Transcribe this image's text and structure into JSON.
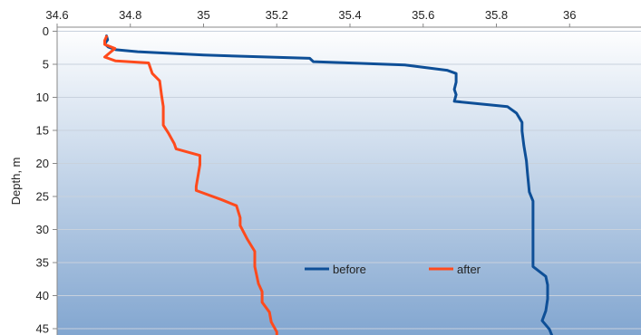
{
  "chart_data": {
    "type": "line",
    "title": "",
    "xlabel": "",
    "ylabel": "Depth, m",
    "xlim": [
      34.6,
      36.2
    ],
    "ylim": [
      0,
      46.5
    ],
    "y_reversed": true,
    "grid": true,
    "legend_placement": "lower-center",
    "x_ticks": [
      34.6,
      34.8,
      35,
      35.2,
      35.4,
      35.6,
      35.8,
      36
    ],
    "x_tick_labels": [
      "34.6",
      "34.8",
      "35",
      "35.2",
      "35.4",
      "35.6",
      "35.8",
      "36"
    ],
    "y_ticks": [
      0,
      5,
      10,
      15,
      20,
      25,
      30,
      35,
      40,
      45
    ],
    "y_tick_labels": [
      "0",
      "5",
      "10",
      "15",
      "20",
      "25",
      "30",
      "35",
      "40",
      "45"
    ],
    "series": [
      {
        "name": "before",
        "color": "#0e4f97",
        "points": [
          [
            34.735,
            0.7
          ],
          [
            34.738,
            1.3
          ],
          [
            34.73,
            1.9
          ],
          [
            34.74,
            2.4
          ],
          [
            34.76,
            2.8
          ],
          [
            34.82,
            3.1
          ],
          [
            35.0,
            3.6
          ],
          [
            35.29,
            4.1
          ],
          [
            35.3,
            4.6
          ],
          [
            35.55,
            5.1
          ],
          [
            35.665,
            5.9
          ],
          [
            35.69,
            6.4
          ],
          [
            35.69,
            7.7
          ],
          [
            35.685,
            8.8
          ],
          [
            35.69,
            9.6
          ],
          [
            35.685,
            10.6
          ],
          [
            35.83,
            11.4
          ],
          [
            35.855,
            12.4
          ],
          [
            35.87,
            13.8
          ],
          [
            35.87,
            15.1
          ],
          [
            35.875,
            17.3
          ],
          [
            35.882,
            19.6
          ],
          [
            35.885,
            21.5
          ],
          [
            35.89,
            24.3
          ],
          [
            35.9,
            25.7
          ],
          [
            35.9,
            27.5
          ],
          [
            35.9,
            30.0
          ],
          [
            35.9,
            32.5
          ],
          [
            35.9,
            35.6
          ],
          [
            35.935,
            37.1
          ],
          [
            35.94,
            38.4
          ],
          [
            35.94,
            40.5
          ],
          [
            35.935,
            42.3
          ],
          [
            35.925,
            43.8
          ],
          [
            35.945,
            45.1
          ],
          [
            35.955,
            46.5
          ]
        ]
      },
      {
        "name": "after",
        "color": "#ff4a1c",
        "points": [
          [
            34.735,
            0.8
          ],
          [
            34.73,
            1.4
          ],
          [
            34.73,
            2.0
          ],
          [
            34.758,
            2.6
          ],
          [
            34.73,
            3.9
          ],
          [
            34.76,
            4.5
          ],
          [
            34.85,
            4.8
          ],
          [
            34.86,
            6.4
          ],
          [
            34.88,
            7.5
          ],
          [
            34.885,
            9.6
          ],
          [
            34.89,
            11.4
          ],
          [
            34.89,
            14.2
          ],
          [
            34.905,
            15.5
          ],
          [
            34.92,
            17.0
          ],
          [
            34.925,
            17.8
          ],
          [
            34.99,
            18.8
          ],
          [
            34.99,
            20.2
          ],
          [
            34.985,
            21.9
          ],
          [
            34.98,
            23.5
          ],
          [
            34.98,
            24.1
          ],
          [
            35.05,
            25.5
          ],
          [
            35.09,
            26.4
          ],
          [
            35.1,
            28.2
          ],
          [
            35.1,
            29.4
          ],
          [
            35.12,
            31.5
          ],
          [
            35.14,
            33.3
          ],
          [
            35.14,
            35.6
          ],
          [
            35.15,
            38.2
          ],
          [
            35.16,
            39.4
          ],
          [
            35.16,
            41.0
          ],
          [
            35.18,
            42.5
          ],
          [
            35.185,
            44.0
          ],
          [
            35.2,
            45.5
          ],
          [
            35.2,
            46.5
          ]
        ]
      }
    ]
  }
}
